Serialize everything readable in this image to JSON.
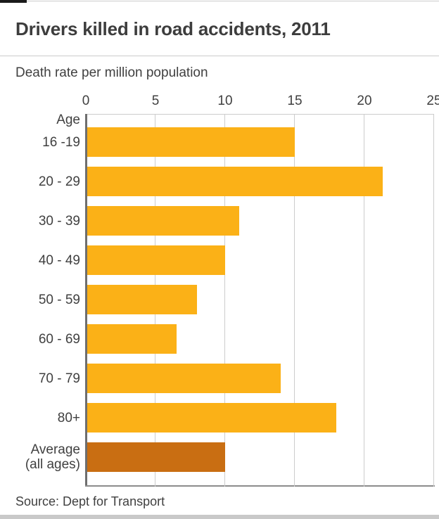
{
  "page": {
    "title": "Drivers killed in road accidents, 2011",
    "subtitle": "Death rate per million population",
    "source": "Source: Dept for Transport"
  },
  "chart_data": {
    "type": "bar",
    "orientation": "horizontal",
    "title": "Drivers killed in road accidents, 2011",
    "xlabel": "Death rate per million population",
    "axis_header": "Age",
    "categories": [
      "16 -19",
      "20 - 29",
      "30 - 39",
      "40 - 49",
      "50 - 59",
      "60 - 69",
      "70 - 79",
      "80+",
      "Average\n(all ages)"
    ],
    "values": [
      15,
      21.3,
      11,
      10,
      8,
      6.5,
      14,
      18,
      10
    ],
    "xlim": [
      0,
      25
    ],
    "xticks": [
      0,
      5,
      10,
      15,
      20,
      25
    ],
    "grid": true,
    "legend": "none",
    "bar_color": "#FBB117",
    "highlight_color": "#C96E12",
    "highlight_index": 8,
    "source": "Source: Dept for Transport"
  },
  "colors": {
    "text": "#404040",
    "gridline": "#cccccc",
    "axis_line": "#6e6e6e",
    "baseline": "#8c8c8c",
    "accent_tab": "#1a1a1a",
    "bottom_strip": "#c9c9c9"
  }
}
